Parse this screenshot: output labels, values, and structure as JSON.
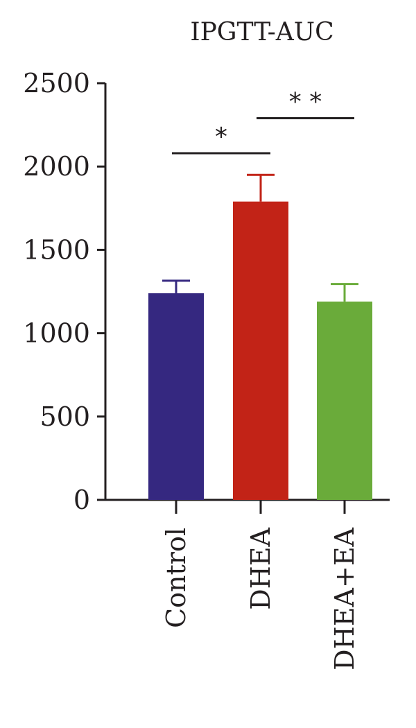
{
  "chart_data": {
    "type": "bar",
    "title": "IPGTT-AUC",
    "xlabel": "",
    "ylabel": "",
    "categories": [
      "Control",
      "DHEA",
      "DHEA+EA"
    ],
    "values": [
      1240,
      1790,
      1190
    ],
    "errors": [
      75,
      160,
      105
    ],
    "colors": [
      "#352880",
      "#c22317",
      "#6aab3a"
    ],
    "ylim": [
      0,
      2500
    ],
    "yticks": [
      "0",
      "500",
      "1000",
      "1500",
      "2000",
      "2500"
    ],
    "grid": false,
    "significance": [
      {
        "from": "Control",
        "to": "DHEA",
        "label": "*",
        "y": 2080
      },
      {
        "from": "DHEA",
        "to": "DHEA+EA",
        "label": "* *",
        "y": 2290
      }
    ]
  }
}
